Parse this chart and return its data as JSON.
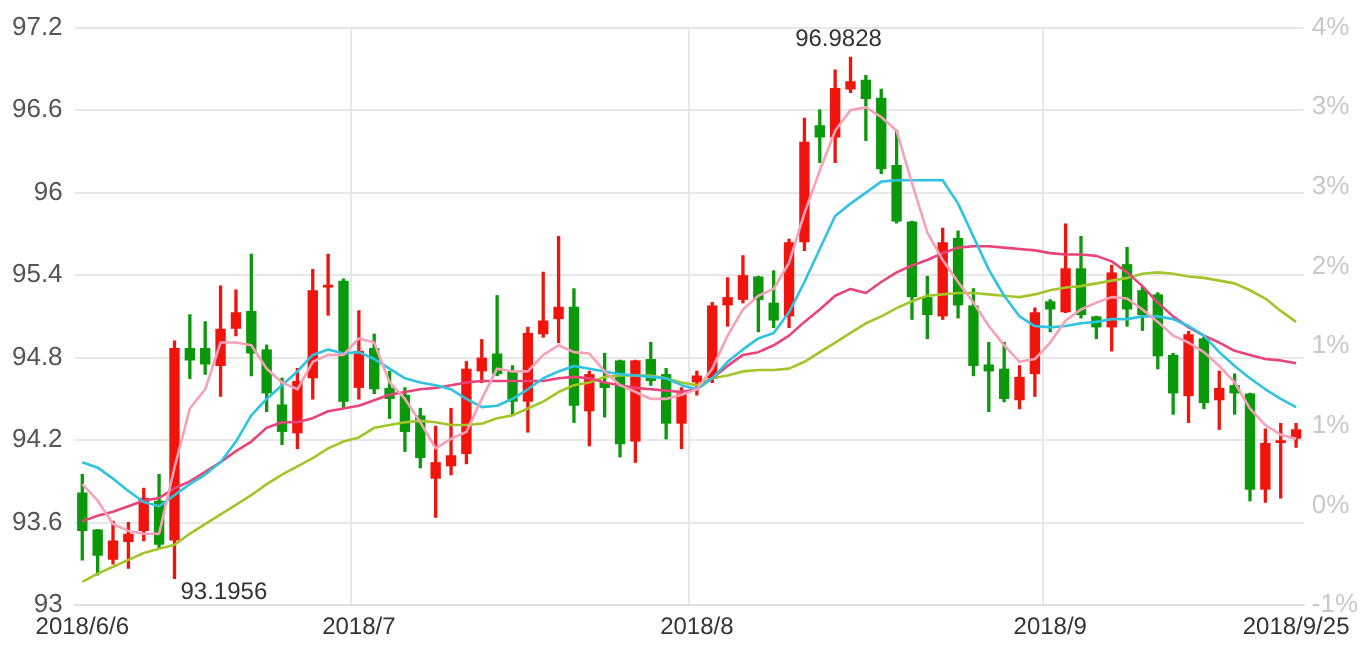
{
  "chart_data": {
    "type": "candlestick",
    "categories": [
      "2018/6/6",
      null,
      null,
      null,
      null,
      null,
      null,
      null,
      null,
      null,
      null,
      null,
      null,
      null,
      null,
      null,
      null,
      null,
      "2018/7",
      null,
      null,
      null,
      null,
      null,
      null,
      null,
      null,
      null,
      null,
      null,
      null,
      null,
      null,
      null,
      null,
      null,
      null,
      null,
      null,
      null,
      "2018/8",
      null,
      null,
      null,
      null,
      null,
      null,
      null,
      null,
      null,
      null,
      null,
      null,
      null,
      null,
      null,
      null,
      null,
      null,
      null,
      null,
      null,
      null,
      "2018/9",
      null,
      null,
      null,
      null,
      null,
      null,
      null,
      null,
      null,
      null,
      null,
      null,
      null,
      null,
      null,
      "2018/9/25"
    ],
    "ohlc": [
      [
        93.82,
        93.95,
        93.33,
        93.54
      ],
      [
        93.55,
        93.55,
        93.22,
        93.36
      ],
      [
        93.33,
        93.61,
        93.3,
        93.47
      ],
      [
        93.46,
        93.6,
        93.27,
        93.52
      ],
      [
        93.54,
        93.85,
        93.47,
        93.78
      ],
      [
        93.76,
        93.95,
        93.42,
        93.44
      ],
      [
        93.47,
        94.92,
        93.1956,
        94.87
      ],
      [
        94.87,
        95.11,
        94.65,
        94.78
      ],
      [
        94.87,
        95.06,
        94.68,
        94.75
      ],
      [
        94.74,
        95.32,
        94.52,
        95.01
      ],
      [
        95.01,
        95.29,
        94.96,
        95.13
      ],
      [
        95.14,
        95.55,
        94.67,
        94.83
      ],
      [
        94.86,
        94.89,
        94.41,
        94.54
      ],
      [
        94.46,
        94.65,
        94.17,
        94.26
      ],
      [
        94.25,
        94.72,
        94.14,
        94.63
      ],
      [
        94.65,
        95.44,
        94.5,
        95.29
      ],
      [
        95.31,
        95.55,
        95.11,
        95.33
      ],
      [
        95.36,
        95.37,
        94.44,
        94.48
      ],
      [
        94.58,
        95.14,
        94.5,
        94.85
      ],
      [
        94.87,
        94.97,
        94.54,
        94.57
      ],
      [
        94.58,
        94.7,
        94.36,
        94.5
      ],
      [
        94.53,
        94.58,
        94.12,
        94.26
      ],
      [
        94.38,
        94.43,
        94.0,
        94.07
      ],
      [
        93.92,
        94.3,
        93.64,
        94.04
      ],
      [
        94.01,
        94.43,
        93.95,
        94.09
      ],
      [
        94.1,
        94.77,
        94.03,
        94.72
      ],
      [
        94.7,
        94.93,
        94.62,
        94.8
      ],
      [
        94.83,
        95.25,
        94.67,
        94.68
      ],
      [
        94.71,
        94.74,
        94.38,
        94.48
      ],
      [
        94.48,
        95.02,
        94.26,
        94.98
      ],
      [
        94.97,
        95.42,
        94.95,
        95.07
      ],
      [
        95.08,
        95.68,
        94.91,
        95.17
      ],
      [
        95.17,
        95.3,
        94.33,
        94.45
      ],
      [
        94.41,
        94.7,
        94.16,
        94.68
      ],
      [
        94.62,
        94.83,
        94.37,
        94.58
      ],
      [
        94.78,
        94.78,
        94.08,
        94.17
      ],
      [
        94.19,
        94.78,
        94.04,
        94.78
      ],
      [
        94.79,
        94.91,
        94.6,
        94.63
      ],
      [
        94.68,
        94.72,
        94.21,
        94.32
      ],
      [
        94.32,
        94.58,
        94.14,
        94.54
      ],
      [
        94.62,
        94.7,
        94.53,
        94.67
      ],
      [
        94.65,
        95.2,
        94.62,
        95.18
      ],
      [
        95.18,
        95.38,
        95.03,
        95.24
      ],
      [
        95.22,
        95.54,
        95.2,
        95.4
      ],
      [
        95.39,
        95.39,
        94.99,
        95.22
      ],
      [
        95.2,
        95.43,
        95.02,
        95.07
      ],
      [
        95.1,
        95.66,
        95.02,
        95.64
      ],
      [
        95.64,
        96.54,
        95.58,
        96.37
      ],
      [
        96.49,
        96.6,
        96.22,
        96.4
      ],
      [
        96.4,
        96.89,
        96.22,
        96.76
      ],
      [
        96.75,
        96.9828,
        96.73,
        96.81
      ],
      [
        96.82,
        96.85,
        96.38,
        96.68
      ],
      [
        96.69,
        96.75,
        96.14,
        96.17
      ],
      [
        96.2,
        96.45,
        95.78,
        95.79
      ],
      [
        95.79,
        95.79,
        95.08,
        95.24
      ],
      [
        95.24,
        95.39,
        94.94,
        95.11
      ],
      [
        95.1,
        95.74,
        95.08,
        95.64
      ],
      [
        95.67,
        95.72,
        95.09,
        95.18
      ],
      [
        95.18,
        95.3,
        94.67,
        94.74
      ],
      [
        94.75,
        94.91,
        94.41,
        94.7
      ],
      [
        94.72,
        94.91,
        94.48,
        94.5
      ],
      [
        94.49,
        94.74,
        94.43,
        94.66
      ],
      [
        94.68,
        95.16,
        94.52,
        95.13
      ],
      [
        95.21,
        95.22,
        94.99,
        95.15
      ],
      [
        95.13,
        95.77,
        95.13,
        95.45
      ],
      [
        95.45,
        95.68,
        95.09,
        95.11
      ],
      [
        95.1,
        95.1,
        94.94,
        95.02
      ],
      [
        95.02,
        95.47,
        94.85,
        95.42
      ],
      [
        95.48,
        95.6,
        95.03,
        95.15
      ],
      [
        95.29,
        95.31,
        95.0,
        95.11
      ],
      [
        95.26,
        95.27,
        94.72,
        94.81
      ],
      [
        94.82,
        94.83,
        94.39,
        94.54
      ],
      [
        94.52,
        94.99,
        94.33,
        94.97
      ],
      [
        94.94,
        94.95,
        94.43,
        94.47
      ],
      [
        94.49,
        94.7,
        94.28,
        94.58
      ],
      [
        94.6,
        94.68,
        94.39,
        94.54
      ],
      [
        94.54,
        94.54,
        93.76,
        93.84
      ],
      [
        93.84,
        94.28,
        93.75,
        94.18
      ],
      [
        94.18,
        94.32,
        93.78,
        94.2
      ],
      [
        94.21,
        94.32,
        94.15,
        94.28
      ]
    ],
    "colors": [
      "#0a990a",
      "#0a990a",
      "#f0140c",
      "#f0140c",
      "#f0140c",
      "#0a990a",
      "#f0140c",
      "#0a990a",
      "#0a990a",
      "#f0140c",
      "#f0140c",
      "#0a990a",
      "#0a990a",
      "#0a990a",
      "#f0140c",
      "#f0140c",
      "#f0140c",
      "#0a990a",
      "#f0140c",
      "#0a990a",
      "#0a990a",
      "#0a990a",
      "#0a990a",
      "#f0140c",
      "#f0140c",
      "#f0140c",
      "#f0140c",
      "#0a990a",
      "#0a990a",
      "#f0140c",
      "#f0140c",
      "#f0140c",
      "#0a990a",
      "#f0140c",
      "#0a990a",
      "#0a990a",
      "#f0140c",
      "#0a990a",
      "#0a990a",
      "#f0140c",
      "#f0140c",
      "#f0140c",
      "#f0140c",
      "#f0140c",
      "#0a990a",
      "#0a990a",
      "#f0140c",
      "#f0140c",
      "#0a990a",
      "#f0140c",
      "#f0140c",
      "#0a990a",
      "#0a990a",
      "#0a990a",
      "#0a990a",
      "#0a990a",
      "#f0140c",
      "#0a990a",
      "#0a990a",
      "#0a990a",
      "#0a990a",
      "#f0140c",
      "#f0140c",
      "#0a990a",
      "#f0140c",
      "#0a990a",
      "#0a990a",
      "#f0140c",
      "#0a990a",
      "#0a990a",
      "#0a990a",
      "#0a990a",
      "#f0140c",
      "#0a990a",
      "#f0140c",
      "#0a990a",
      "#0a990a",
      "#f0140c",
      "#f0140c",
      "#f0140c"
    ],
    "series": [
      {
        "type": "line",
        "color": "#f7a1b8",
        "values": [
          93.88,
          93.76,
          93.59,
          93.54,
          93.52,
          93.52,
          94.0,
          94.43,
          94.57,
          94.91,
          94.91,
          94.89,
          94.72,
          94.62,
          94.57,
          94.77,
          94.82,
          94.82,
          94.94,
          94.91,
          94.62,
          94.5,
          94.33,
          94.14,
          94.21,
          94.26,
          94.5,
          94.72,
          94.7,
          94.7,
          94.82,
          94.89,
          94.84,
          94.83,
          94.7,
          94.6,
          94.55,
          94.5,
          94.5,
          94.53,
          94.57,
          94.72,
          94.96,
          95.15,
          95.25,
          95.3,
          95.49,
          95.85,
          96.16,
          96.45,
          96.6,
          96.62,
          96.55,
          96.45,
          96.07,
          95.71,
          95.51,
          95.35,
          95.2,
          95.03,
          94.89,
          94.77,
          94.79,
          94.91,
          95.07,
          95.15,
          95.2,
          95.24,
          95.23,
          95.15,
          95.06,
          94.96,
          94.91,
          94.84,
          94.74,
          94.62,
          94.43,
          94.31,
          94.24,
          94.21
        ]
      },
      {
        "type": "line",
        "color": "#2ec3e0",
        "values": [
          94.04,
          94.0,
          93.92,
          93.83,
          93.75,
          93.72,
          93.8,
          93.88,
          93.95,
          94.04,
          94.19,
          94.38,
          94.5,
          94.6,
          94.7,
          94.82,
          94.86,
          94.83,
          94.84,
          94.79,
          94.72,
          94.65,
          94.62,
          94.6,
          94.57,
          94.5,
          94.44,
          94.45,
          94.5,
          94.57,
          94.65,
          94.7,
          94.74,
          94.72,
          94.7,
          94.68,
          94.67,
          94.66,
          94.65,
          94.6,
          94.57,
          94.65,
          94.77,
          94.86,
          94.94,
          94.98,
          95.13,
          95.35,
          95.59,
          95.83,
          95.92,
          96.0,
          96.08,
          96.09,
          96.09,
          96.09,
          96.09,
          95.92,
          95.68,
          95.44,
          95.25,
          95.1,
          95.03,
          95.02,
          95.03,
          95.05,
          95.06,
          95.08,
          95.08,
          95.1,
          95.1,
          95.08,
          95.03,
          94.96,
          94.84,
          94.74,
          94.65,
          94.57,
          94.5,
          94.44
        ]
      },
      {
        "type": "line",
        "color": "#e8437a",
        "values": [
          93.61,
          93.65,
          93.68,
          93.72,
          93.76,
          93.78,
          93.85,
          93.9,
          93.97,
          94.04,
          94.12,
          94.19,
          94.29,
          94.33,
          94.33,
          94.36,
          94.41,
          94.43,
          94.45,
          94.49,
          94.53,
          94.55,
          94.57,
          94.58,
          94.6,
          94.62,
          94.63,
          94.63,
          94.63,
          94.63,
          94.63,
          94.65,
          94.66,
          94.65,
          94.62,
          94.6,
          94.58,
          94.57,
          94.56,
          94.55,
          94.57,
          94.65,
          94.74,
          94.82,
          94.84,
          94.89,
          94.96,
          95.06,
          95.15,
          95.25,
          95.3,
          95.27,
          95.35,
          95.42,
          95.47,
          95.51,
          95.56,
          95.6,
          95.61,
          95.61,
          95.6,
          95.59,
          95.58,
          95.56,
          95.55,
          95.55,
          95.54,
          95.5,
          95.42,
          95.32,
          95.2,
          95.1,
          95.02,
          94.96,
          94.91,
          94.85,
          94.82,
          94.79,
          94.78,
          94.76
        ]
      },
      {
        "type": "line",
        "color": "#a2c52a",
        "values": [
          93.17,
          93.23,
          93.28,
          93.33,
          93.38,
          93.41,
          93.44,
          93.52,
          93.59,
          93.66,
          93.73,
          93.8,
          93.88,
          93.95,
          94.01,
          94.07,
          94.14,
          94.19,
          94.22,
          94.29,
          94.31,
          94.33,
          94.34,
          94.33,
          94.31,
          94.31,
          94.32,
          94.36,
          94.38,
          94.43,
          94.48,
          94.55,
          94.6,
          94.62,
          94.66,
          94.67,
          94.67,
          94.67,
          94.65,
          94.62,
          94.6,
          94.65,
          94.67,
          94.7,
          94.71,
          94.71,
          94.72,
          94.77,
          94.84,
          94.91,
          94.98,
          95.05,
          95.1,
          95.16,
          95.21,
          95.25,
          95.26,
          95.27,
          95.27,
          95.26,
          95.25,
          95.24,
          95.26,
          95.29,
          95.31,
          95.32,
          95.34,
          95.36,
          95.38,
          95.41,
          95.42,
          95.41,
          95.39,
          95.38,
          95.36,
          95.34,
          95.29,
          95.23,
          95.14,
          95.06
        ]
      }
    ],
    "ylim": [
      93,
      97.2
    ],
    "yticks": [
      93,
      93.6,
      94.2,
      94.8,
      95.4,
      96,
      96.6,
      97.2
    ],
    "y2lim": [
      -0.6,
      3.75
    ],
    "y2ticks": [
      {
        "value": 3.75,
        "label": "4%"
      },
      {
        "value": 3.15,
        "label": "3%"
      },
      {
        "value": 2.55,
        "label": "3%"
      },
      {
        "value": 1.95,
        "label": "2%"
      },
      {
        "value": 1.35,
        "label": "1%"
      },
      {
        "value": 0.75,
        "label": "1%"
      },
      {
        "value": 0.15,
        "label": "0%"
      },
      {
        "value": -0.6,
        "label": "-1%"
      }
    ],
    "annotations": [
      "96.9828",
      "93.1956"
    ],
    "grid": true,
    "legend": false
  }
}
